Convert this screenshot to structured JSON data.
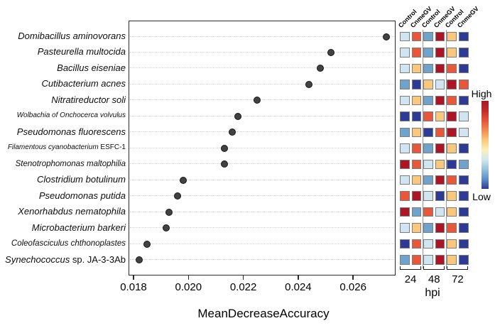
{
  "figure": {
    "legend": {
      "high_label": "High",
      "low_label": "Low"
    },
    "colors": {
      "dot": "#424242",
      "frame": "#2b2b2b",
      "palette": {
        "darkred": "#ab1526",
        "orange": "#e9573a",
        "lightorange": "#f9c87d",
        "lightblue": "#d0e5ef",
        "steelblue": "#6fa3cb",
        "darkblue": "#2d3a96"
      },
      "legend_gradient": [
        "#a21a26",
        "#c42a28",
        "#e35237",
        "#f08a50",
        "#f8c87c",
        "#fcf0b6",
        "#d4e7f0",
        "#97c0da",
        "#5e8ec5",
        "#2d3a96"
      ]
    }
  },
  "chart_data": [
    {
      "type": "scatter",
      "title": "",
      "xlabel": "MeanDecreaseAccuracy",
      "ylabel": "",
      "xticks": [
        "0.018",
        "0.020",
        "0.022",
        "0.024",
        "0.026"
      ],
      "xtick_values": [
        0.018,
        0.02,
        0.022,
        0.024,
        0.026
      ],
      "xlim": [
        0.01782,
        0.02755
      ],
      "grid": "horizontal-dotted",
      "categories": [
        {
          "em": "Domibacillus aminovorans",
          "plain": ""
        },
        {
          "em": "Pasteurella multocida",
          "plain": ""
        },
        {
          "em": "Bacillus eiseniae",
          "plain": ""
        },
        {
          "em": "Cutibacterium acnes",
          "plain": ""
        },
        {
          "em": "Nitratireductor soli",
          "plain": ""
        },
        {
          "em": "Wolbachia of Onchocerca volvulus",
          "plain": ""
        },
        {
          "em": "Pseudomonas fluorescens",
          "plain": ""
        },
        {
          "em": "Filamentous cyanobacterium",
          "plain": " ESFC-1"
        },
        {
          "em": "Stenotrophomonas maltophilia",
          "plain": ""
        },
        {
          "em": "Clostridium botulinum",
          "plain": ""
        },
        {
          "em": "Pseudomonas putida",
          "plain": ""
        },
        {
          "em": "Xenorhabdus nematophila",
          "plain": ""
        },
        {
          "em": "Microbacterium barkeri",
          "plain": ""
        },
        {
          "em": "Coleofasciculus chthonoplastes",
          "plain": ""
        },
        {
          "em": "Synechococcus",
          "plain": " sp. JA-3-3Ab"
        }
      ],
      "values": [
        0.0272,
        0.0252,
        0.0248,
        0.0244,
        0.0225,
        0.0218,
        0.0216,
        0.0213,
        0.0213,
        0.0198,
        0.0196,
        0.0193,
        0.0192,
        0.0185,
        0.0182
      ]
    },
    {
      "type": "heatmap",
      "columns": [
        "Control",
        "CnmeGV",
        "Control",
        "CnmeGV",
        "Control",
        "CnmeGV"
      ],
      "group_labels": [
        "24",
        "48",
        "72"
      ],
      "group_axis_label": "hpi",
      "legend": {
        "high": "High",
        "low": "Low"
      },
      "cells": [
        [
          "lightblue",
          "orange",
          "steelblue",
          "darkred",
          "lightorange",
          "darkblue"
        ],
        [
          "lightblue",
          "orange",
          "steelblue",
          "darkred",
          "lightorange",
          "darkblue"
        ],
        [
          "lightblue",
          "lightorange",
          "steelblue",
          "darkred",
          "orange",
          "darkblue"
        ],
        [
          "steelblue",
          "darkblue",
          "lightorange",
          "lightblue",
          "darkred",
          "orange"
        ],
        [
          "lightblue",
          "lightorange",
          "steelblue",
          "darkred",
          "orange",
          "darkblue"
        ],
        [
          "darkblue",
          "darkblue",
          "orange",
          "lightorange",
          "darkred",
          "lightblue"
        ],
        [
          "steelblue",
          "lightorange",
          "darkblue",
          "orange",
          "darkred",
          "lightblue"
        ],
        [
          "lightblue",
          "orange",
          "steelblue",
          "darkred",
          "lightorange",
          "darkblue"
        ],
        [
          "darkred",
          "orange",
          "lightblue",
          "lightorange",
          "darkblue",
          "steelblue"
        ],
        [
          "lightblue",
          "lightorange",
          "steelblue",
          "darkred",
          "orange",
          "darkblue"
        ],
        [
          "orange",
          "darkred",
          "lightblue",
          "darkblue",
          "lightorange",
          "darkblue"
        ],
        [
          "darkred",
          "steelblue",
          "orange",
          "lightblue",
          "lightorange",
          "darkblue"
        ],
        [
          "lightblue",
          "lightorange",
          "steelblue",
          "darkred",
          "orange",
          "darkblue"
        ],
        [
          "darkblue",
          "orange",
          "lightblue",
          "darkred",
          "lightorange",
          "darkblue"
        ],
        [
          "steelblue",
          "orange",
          "lightblue",
          "darkred",
          "lightorange",
          "darkblue"
        ]
      ]
    }
  ]
}
